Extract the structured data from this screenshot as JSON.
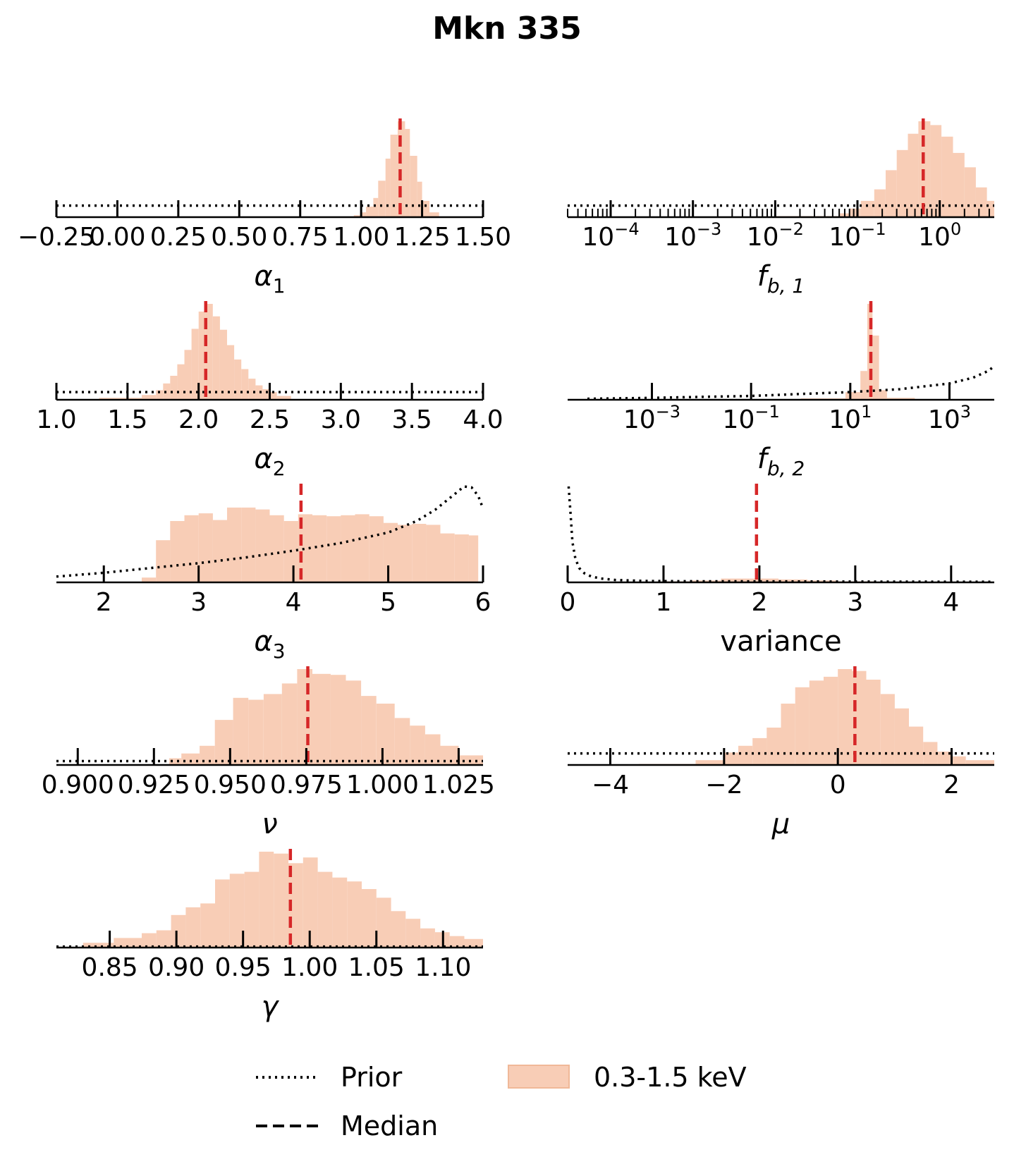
{
  "figure": {
    "title": "Mkn 335",
    "legend": {
      "placement": "bottom-center",
      "prior_label": "Prior",
      "median_label": "Median",
      "band_label": "0.3-1.5 keV"
    },
    "colors": {
      "histogram": "#f8cdb6",
      "median": "#d62728",
      "prior": "#000000"
    }
  },
  "chart_data": [
    {
      "type": "bar",
      "id": "alpha1",
      "xlabel": "α",
      "xlabel_sub": "1",
      "xscale": "linear",
      "xlim": [
        -0.25,
        1.5
      ],
      "ticks": [
        {
          "v": -0.25,
          "label": "−0.25"
        },
        {
          "v": 0.0,
          "label": "0.00"
        },
        {
          "v": 0.25,
          "label": "0.25"
        },
        {
          "v": 0.5,
          "label": "0.50"
        },
        {
          "v": 0.75,
          "label": "0.75"
        },
        {
          "v": 1.0,
          "label": "1.00"
        },
        {
          "v": 1.25,
          "label": "1.25"
        },
        {
          "v": 1.5,
          "label": "1.50"
        }
      ],
      "bins": [
        [
          0.9,
          0.97,
          0.005
        ],
        [
          0.97,
          1.0,
          0.02
        ],
        [
          1.0,
          1.02,
          0.05
        ],
        [
          1.02,
          1.05,
          0.11
        ],
        [
          1.05,
          1.07,
          0.2
        ],
        [
          1.07,
          1.1,
          0.38
        ],
        [
          1.1,
          1.12,
          0.61
        ],
        [
          1.12,
          1.15,
          0.86
        ],
        [
          1.15,
          1.18,
          1.0
        ],
        [
          1.18,
          1.2,
          0.92
        ],
        [
          1.2,
          1.23,
          0.64
        ],
        [
          1.23,
          1.25,
          0.37
        ],
        [
          1.25,
          1.28,
          0.17
        ],
        [
          1.28,
          1.32,
          0.05
        ]
      ],
      "median": 1.16,
      "prior": {
        "kind": "flat",
        "level": 0.12
      }
    },
    {
      "type": "bar",
      "id": "fb1",
      "xlabel": "f",
      "xlabel_sub": "b, 1",
      "xscale": "log",
      "xlim": [
        3e-05,
        4.6
      ],
      "ticks": [
        {
          "v": 0.0001,
          "base": "10",
          "exp": "−4"
        },
        {
          "v": 0.001,
          "base": "10",
          "exp": "−3"
        },
        {
          "v": 0.01,
          "base": "10",
          "exp": "−2"
        },
        {
          "v": 0.1,
          "base": "10",
          "exp": "−1"
        },
        {
          "v": 1,
          "base": "10",
          "exp": "0"
        }
      ],
      "minor_ticks": true,
      "bins": [
        [
          0.01,
          0.06,
          0.01
        ],
        [
          0.06,
          0.08,
          0.04
        ],
        [
          0.08,
          0.11,
          0.09
        ],
        [
          0.11,
          0.16,
          0.17
        ],
        [
          0.16,
          0.22,
          0.29
        ],
        [
          0.22,
          0.3,
          0.49
        ],
        [
          0.3,
          0.41,
          0.7
        ],
        [
          0.41,
          0.55,
          0.87
        ],
        [
          0.55,
          0.77,
          1.0
        ],
        [
          0.77,
          1.05,
          0.96
        ],
        [
          1.05,
          1.45,
          0.84
        ],
        [
          1.45,
          2.0,
          0.67
        ],
        [
          2.0,
          2.75,
          0.52
        ],
        [
          2.75,
          3.75,
          0.31
        ],
        [
          3.75,
          4.6,
          0.17
        ]
      ],
      "median": 0.63,
      "prior": {
        "kind": "flat",
        "level": 0.12
      }
    },
    {
      "type": "bar",
      "id": "alpha2",
      "xlabel": "α",
      "xlabel_sub": "2",
      "xscale": "linear",
      "xlim": [
        1.0,
        4.0
      ],
      "ticks": [
        {
          "v": 1.0,
          "label": "1.0"
        },
        {
          "v": 1.5,
          "label": "1.5"
        },
        {
          "v": 2.0,
          "label": "2.0"
        },
        {
          "v": 2.5,
          "label": "2.5"
        },
        {
          "v": 3.0,
          "label": "3.0"
        },
        {
          "v": 3.5,
          "label": "3.5"
        },
        {
          "v": 4.0,
          "label": "4.0"
        }
      ],
      "bins": [
        [
          1.3,
          1.6,
          0.02
        ],
        [
          1.6,
          1.7,
          0.05
        ],
        [
          1.7,
          1.75,
          0.1
        ],
        [
          1.75,
          1.8,
          0.17
        ],
        [
          1.8,
          1.85,
          0.25
        ],
        [
          1.85,
          1.9,
          0.37
        ],
        [
          1.9,
          1.95,
          0.52
        ],
        [
          1.95,
          2.0,
          0.74
        ],
        [
          2.0,
          2.05,
          0.92
        ],
        [
          2.05,
          2.1,
          1.0
        ],
        [
          2.1,
          2.15,
          0.87
        ],
        [
          2.15,
          2.2,
          0.73
        ],
        [
          2.2,
          2.25,
          0.57
        ],
        [
          2.25,
          2.3,
          0.42
        ],
        [
          2.3,
          2.35,
          0.32
        ],
        [
          2.35,
          2.4,
          0.22
        ],
        [
          2.4,
          2.45,
          0.15
        ],
        [
          2.45,
          2.5,
          0.11
        ],
        [
          2.5,
          2.55,
          0.08
        ],
        [
          2.55,
          2.65,
          0.04
        ]
      ],
      "median": 2.05,
      "prior": {
        "kind": "flat",
        "level": 0.08
      }
    },
    {
      "type": "bar",
      "id": "fb2",
      "xlabel": "f",
      "xlabel_sub": "b, 2",
      "xscale": "log",
      "xlim": [
        2e-05,
        8000
      ],
      "ticks": [
        {
          "v": 0.001,
          "base": "10",
          "exp": "−3"
        },
        {
          "v": 0.1,
          "base": "10",
          "exp": "−1"
        },
        {
          "v": 10,
          "base": "10",
          "exp": "1"
        },
        {
          "v": 1000,
          "base": "10",
          "exp": "3"
        }
      ],
      "minor_ticks": false,
      "bins": [
        [
          1,
          8,
          0.015
        ],
        [
          8,
          16,
          0.08
        ],
        [
          16,
          22,
          0.3
        ],
        [
          22,
          28,
          1.0
        ],
        [
          28,
          38,
          0.67
        ],
        [
          38,
          55,
          0.1
        ],
        [
          55,
          200,
          0.02
        ]
      ],
      "median": 26,
      "prior": {
        "kind": "curve",
        "points": [
          [
            5e-05,
            0.01
          ],
          [
            0.001,
            0.02
          ],
          [
            0.01,
            0.03
          ],
          [
            0.1,
            0.04
          ],
          [
            1,
            0.06
          ],
          [
            10,
            0.08
          ],
          [
            100,
            0.11
          ],
          [
            1000,
            0.17
          ],
          [
            3000,
            0.23
          ],
          [
            6000,
            0.3
          ],
          [
            8000,
            0.35
          ]
        ]
      }
    },
    {
      "type": "bar",
      "id": "alpha3",
      "xlabel": "α",
      "xlabel_sub": "3",
      "xscale": "linear",
      "xlim": [
        1.5,
        6.0
      ],
      "ticks": [
        {
          "v": 2,
          "label": "2"
        },
        {
          "v": 3,
          "label": "3"
        },
        {
          "v": 4,
          "label": "4"
        },
        {
          "v": 5,
          "label": "5"
        },
        {
          "v": 6,
          "label": "6"
        }
      ],
      "bins": [
        [
          2.4,
          2.55,
          0.05
        ],
        [
          2.55,
          2.7,
          0.44
        ],
        [
          2.7,
          2.85,
          0.64
        ],
        [
          2.85,
          3.0,
          0.7
        ],
        [
          3.0,
          3.15,
          0.72
        ],
        [
          3.15,
          3.3,
          0.65
        ],
        [
          3.3,
          3.45,
          0.78
        ],
        [
          3.45,
          3.6,
          0.78
        ],
        [
          3.6,
          3.75,
          0.76
        ],
        [
          3.75,
          3.9,
          0.7
        ],
        [
          3.9,
          4.05,
          0.64
        ],
        [
          4.05,
          4.2,
          0.71
        ],
        [
          4.2,
          4.35,
          0.7
        ],
        [
          4.35,
          4.5,
          0.69
        ],
        [
          4.5,
          4.65,
          0.7
        ],
        [
          4.65,
          4.8,
          0.71
        ],
        [
          4.8,
          4.95,
          0.69
        ],
        [
          4.95,
          5.1,
          0.62
        ],
        [
          5.1,
          5.25,
          0.6
        ],
        [
          5.25,
          5.4,
          0.61
        ],
        [
          5.4,
          5.55,
          0.6
        ],
        [
          5.55,
          5.7,
          0.51
        ],
        [
          5.7,
          5.85,
          0.5
        ],
        [
          5.85,
          5.95,
          0.49
        ]
      ],
      "median": 4.08,
      "prior": {
        "kind": "curve",
        "points": [
          [
            1.5,
            0.06
          ],
          [
            2.0,
            0.1
          ],
          [
            2.5,
            0.15
          ],
          [
            3.0,
            0.2
          ],
          [
            3.5,
            0.26
          ],
          [
            4.0,
            0.33
          ],
          [
            4.5,
            0.41
          ],
          [
            5.0,
            0.52
          ],
          [
            5.3,
            0.64
          ],
          [
            5.5,
            0.76
          ],
          [
            5.7,
            0.92
          ],
          [
            5.8,
            1.0
          ],
          [
            5.88,
            0.99
          ],
          [
            5.95,
            0.9
          ],
          [
            6.0,
            0.77
          ]
        ]
      }
    },
    {
      "type": "bar",
      "id": "variance",
      "xlabel": "variance",
      "xlabel_sub": "",
      "xscale": "linear",
      "xlim": [
        0,
        4.45
      ],
      "ticks": [
        {
          "v": 0,
          "label": "0"
        },
        {
          "v": 1,
          "label": "1"
        },
        {
          "v": 2,
          "label": "2"
        },
        {
          "v": 3,
          "label": "3"
        },
        {
          "v": 4,
          "label": "4"
        }
      ],
      "bins": [
        [
          1.0,
          1.3,
          0.01
        ],
        [
          1.3,
          1.6,
          0.02
        ],
        [
          1.6,
          1.9,
          0.04
        ],
        [
          1.9,
          2.2,
          0.04
        ],
        [
          2.2,
          2.5,
          0.03
        ],
        [
          2.5,
          2.8,
          0.02
        ],
        [
          2.8,
          3.2,
          0.01
        ],
        [
          3.2,
          3.6,
          0.005
        ]
      ],
      "median": 1.97,
      "prior": {
        "kind": "curve",
        "points": [
          [
            0.01,
            1.0
          ],
          [
            0.03,
            0.72
          ],
          [
            0.05,
            0.42
          ],
          [
            0.08,
            0.25
          ],
          [
            0.12,
            0.15
          ],
          [
            0.18,
            0.09
          ],
          [
            0.25,
            0.06
          ],
          [
            0.35,
            0.04
          ],
          [
            0.5,
            0.025
          ],
          [
            0.8,
            0.015
          ],
          [
            1.2,
            0.012
          ],
          [
            2.0,
            0.01
          ],
          [
            3.0,
            0.008
          ],
          [
            4.45,
            0.006
          ]
        ]
      }
    },
    {
      "type": "bar",
      "id": "nu",
      "xlabel": "ν",
      "xlabel_sub": "",
      "xscale": "linear",
      "xlim": [
        0.893,
        1.033
      ],
      "ticks": [
        {
          "v": 0.9,
          "label": "0.900"
        },
        {
          "v": 0.925,
          "label": "0.925"
        },
        {
          "v": 0.95,
          "label": "0.950"
        },
        {
          "v": 0.975,
          "label": "0.975"
        },
        {
          "v": 1.0,
          "label": "1.000"
        },
        {
          "v": 1.025,
          "label": "1.025"
        }
      ],
      "bins": [
        [
          0.93,
          0.934,
          0.07
        ],
        [
          0.934,
          0.94,
          0.12
        ],
        [
          0.94,
          0.945,
          0.2
        ],
        [
          0.945,
          0.951,
          0.47
        ],
        [
          0.951,
          0.956,
          0.7
        ],
        [
          0.956,
          0.961,
          0.68
        ],
        [
          0.961,
          0.967,
          0.74
        ],
        [
          0.967,
          0.972,
          0.85
        ],
        [
          0.972,
          0.977,
          1.0
        ],
        [
          0.977,
          0.983,
          0.95
        ],
        [
          0.983,
          0.988,
          0.94
        ],
        [
          0.988,
          0.993,
          0.88
        ],
        [
          0.993,
          0.998,
          0.72
        ],
        [
          0.998,
          1.004,
          0.64
        ],
        [
          1.004,
          1.009,
          0.49
        ],
        [
          1.009,
          1.014,
          0.41
        ],
        [
          1.014,
          1.019,
          0.32
        ],
        [
          1.019,
          1.025,
          0.2
        ],
        [
          1.025,
          1.033,
          0.1
        ]
      ],
      "median": 0.9755,
      "prior": {
        "kind": "flat",
        "level": 0.04
      }
    },
    {
      "type": "bar",
      "id": "mu",
      "xlabel": "μ",
      "xlabel_sub": "",
      "xscale": "linear",
      "xlim": [
        -4.75,
        2.75
      ],
      "ticks": [
        {
          "v": -4,
          "label": "−4"
        },
        {
          "v": -2,
          "label": "−2"
        },
        {
          "v": 0,
          "label": "0"
        },
        {
          "v": 2,
          "label": "2"
        }
      ],
      "bins": [
        [
          -3.5,
          -2.5,
          0.01
        ],
        [
          -2.5,
          -2.0,
          0.05
        ],
        [
          -2.0,
          -1.75,
          0.13
        ],
        [
          -1.75,
          -1.5,
          0.2
        ],
        [
          -1.5,
          -1.25,
          0.28
        ],
        [
          -1.25,
          -1.0,
          0.39
        ],
        [
          -1.0,
          -0.75,
          0.64
        ],
        [
          -0.75,
          -0.5,
          0.81
        ],
        [
          -0.5,
          -0.25,
          0.88
        ],
        [
          -0.25,
          0.0,
          0.92
        ],
        [
          0.0,
          0.25,
          1.0
        ],
        [
          0.25,
          0.5,
          0.98
        ],
        [
          0.5,
          0.75,
          0.89
        ],
        [
          0.75,
          1.0,
          0.74
        ],
        [
          1.0,
          1.25,
          0.59
        ],
        [
          1.25,
          1.5,
          0.4
        ],
        [
          1.5,
          1.75,
          0.24
        ],
        [
          1.75,
          2.0,
          0.14
        ],
        [
          2.0,
          2.25,
          0.09
        ],
        [
          2.25,
          2.75,
          0.05
        ]
      ],
      "median": 0.3,
      "prior": {
        "kind": "flat",
        "level": 0.12
      }
    },
    {
      "type": "bar",
      "id": "gamma",
      "xlabel": "γ",
      "xlabel_sub": "",
      "xscale": "linear",
      "xlim": [
        0.81,
        1.13
      ],
      "ticks": [
        {
          "v": 0.85,
          "label": "0.85"
        },
        {
          "v": 0.9,
          "label": "0.90"
        },
        {
          "v": 0.95,
          "label": "0.95"
        },
        {
          "v": 1.0,
          "label": "1.00"
        },
        {
          "v": 1.05,
          "label": "1.05"
        },
        {
          "v": 1.1,
          "label": "1.10"
        }
      ],
      "bins": [
        [
          0.83,
          0.853,
          0.05
        ],
        [
          0.853,
          0.874,
          0.1
        ],
        [
          0.874,
          0.885,
          0.15
        ],
        [
          0.885,
          0.896,
          0.18
        ],
        [
          0.896,
          0.907,
          0.34
        ],
        [
          0.907,
          0.918,
          0.42
        ],
        [
          0.918,
          0.929,
          0.46
        ],
        [
          0.929,
          0.94,
          0.71
        ],
        [
          0.94,
          0.951,
          0.77
        ],
        [
          0.951,
          0.962,
          0.79
        ],
        [
          0.962,
          0.973,
          1.0
        ],
        [
          0.973,
          0.984,
          0.98
        ],
        [
          0.984,
          0.995,
          0.88
        ],
        [
          0.995,
          1.006,
          0.94
        ],
        [
          1.006,
          1.017,
          0.79
        ],
        [
          1.017,
          1.028,
          0.73
        ],
        [
          1.028,
          1.039,
          0.69
        ],
        [
          1.039,
          1.05,
          0.61
        ],
        [
          1.05,
          1.061,
          0.52
        ],
        [
          1.061,
          1.072,
          0.38
        ],
        [
          1.072,
          1.083,
          0.3
        ],
        [
          1.083,
          1.094,
          0.2
        ],
        [
          1.094,
          1.105,
          0.16
        ],
        [
          1.105,
          1.116,
          0.12
        ],
        [
          1.116,
          1.13,
          0.09
        ]
      ],
      "median": 0.9855,
      "prior": {
        "kind": "flat",
        "level": 0.01
      }
    }
  ]
}
